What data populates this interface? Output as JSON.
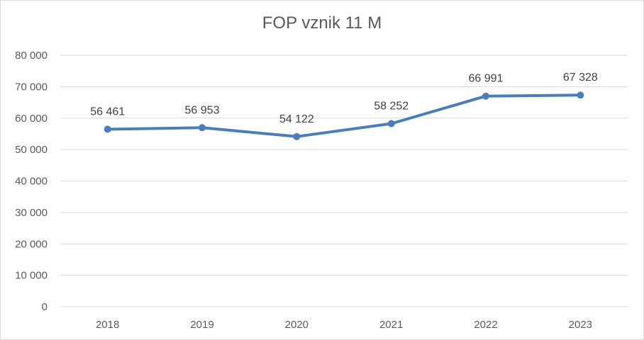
{
  "chart_data": {
    "type": "line",
    "title": "FOP vznik 11 M",
    "categories": [
      "2018",
      "2019",
      "2020",
      "2021",
      "2022",
      "2023"
    ],
    "series": [
      {
        "values": [
          56461,
          56953,
          54122,
          58252,
          66991,
          67328
        ],
        "labels": [
          "56 461",
          "56 953",
          "54 122",
          "58 252",
          "66 991",
          "67 328"
        ]
      }
    ],
    "ylim": [
      0,
      80000
    ],
    "yticks": [
      0,
      10000,
      20000,
      30000,
      40000,
      50000,
      60000,
      70000,
      80000
    ],
    "ytick_labels": [
      "0",
      "10 000",
      "20 000",
      "30 000",
      "40 000",
      "50 000",
      "60 000",
      "70 000",
      "80 000"
    ],
    "grid": true,
    "legend": "none",
    "colors": {
      "line": "#4a7ebb",
      "grid": "#d9d9d9",
      "text": "#595959"
    }
  }
}
